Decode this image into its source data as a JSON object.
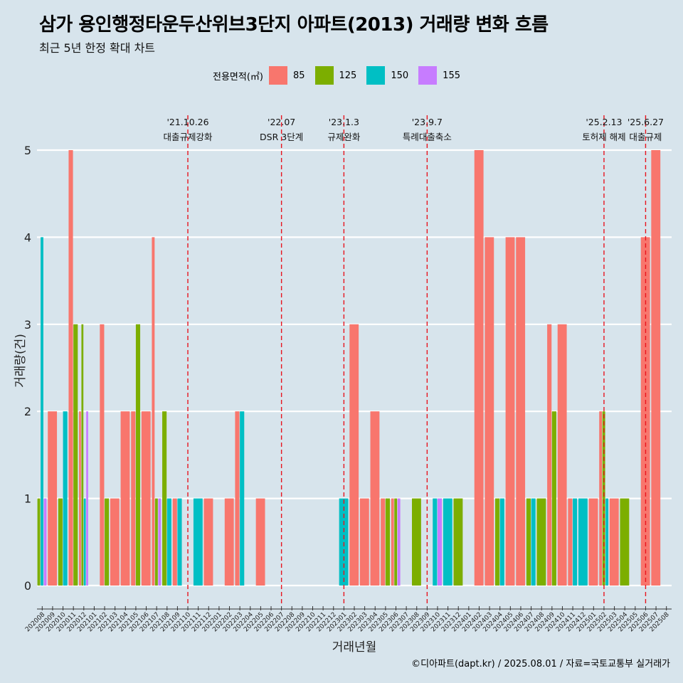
{
  "title": "삼가 용인행정타운두산위브3단지 아파트(2013) 거래량 변화 흐름",
  "subtitle": "최근 5년 한정 확대 차트",
  "caption": "©디아파트(dapt.kr) / 2025.08.01 / 자료=국토교통부 실거래가",
  "legend": {
    "title": "전용면적(㎡)",
    "items": [
      {
        "label": "85",
        "color": "#f8766d"
      },
      {
        "label": "125",
        "color": "#7cae00"
      },
      {
        "label": "150",
        "color": "#00bfc4"
      },
      {
        "label": "155",
        "color": "#c77cff"
      }
    ]
  },
  "chart_data": {
    "type": "bar",
    "xlabel": "거래년월",
    "ylabel": "거래량(건)",
    "ylim": [
      0,
      5
    ],
    "yticks": [
      0,
      1,
      2,
      3,
      4,
      5
    ],
    "grid": true,
    "categories": [
      "202008",
      "202009",
      "202010",
      "202011",
      "202012",
      "202101",
      "202102",
      "202103",
      "202104",
      "202105",
      "202106",
      "202107",
      "202108",
      "202109",
      "202110",
      "202111",
      "202112",
      "202201",
      "202202",
      "202203",
      "202204",
      "202205",
      "202206",
      "202207",
      "202208",
      "202209",
      "202210",
      "202211",
      "202212",
      "202301",
      "202302",
      "202303",
      "202304",
      "202305",
      "202306",
      "202307",
      "202308",
      "202309",
      "202310",
      "202311",
      "202312",
      "202401",
      "202402",
      "202403",
      "202404",
      "202405",
      "202406",
      "202407",
      "202408",
      "202409",
      "202410",
      "202411",
      "202412",
      "202501",
      "202502",
      "202503",
      "202504",
      "202505",
      "202506",
      "202507",
      "202508"
    ],
    "series": [
      {
        "name": "85",
        "color": "#f8766d",
        "values": [
          0,
          2,
          0,
          5,
          2,
          0,
          3,
          1,
          2,
          2,
          2,
          4,
          0,
          1,
          0,
          0,
          1,
          0,
          1,
          2,
          0,
          1,
          0,
          0,
          0,
          0,
          0,
          0,
          0,
          0,
          3,
          1,
          2,
          1,
          1,
          0,
          0,
          0,
          0,
          0,
          0,
          0,
          5,
          4,
          0,
          4,
          4,
          0,
          0,
          3,
          3,
          1,
          0,
          1,
          2,
          1,
          0,
          0,
          4,
          5,
          0
        ]
      },
      {
        "name": "125",
        "color": "#7cae00",
        "values": [
          1,
          0,
          1,
          3,
          3,
          0,
          1,
          0,
          0,
          3,
          0,
          1,
          2,
          0,
          0,
          0,
          0,
          0,
          0,
          0,
          0,
          0,
          0,
          0,
          0,
          0,
          0,
          0,
          0,
          0,
          0,
          0,
          0,
          1,
          1,
          0,
          1,
          0,
          0,
          0,
          1,
          0,
          0,
          0,
          1,
          0,
          0,
          1,
          1,
          2,
          0,
          0,
          0,
          0,
          2,
          0,
          1,
          0,
          0,
          0,
          0
        ]
      },
      {
        "name": "150",
        "color": "#00bfc4",
        "values": [
          4,
          0,
          2,
          0,
          1,
          0,
          0,
          0,
          0,
          0,
          0,
          0,
          1,
          1,
          0,
          1,
          0,
          0,
          0,
          2,
          0,
          0,
          0,
          0,
          0,
          0,
          0,
          0,
          0,
          1,
          0,
          0,
          0,
          0,
          0,
          0,
          0,
          0,
          1,
          1,
          0,
          0,
          0,
          0,
          1,
          0,
          0,
          1,
          0,
          0,
          0,
          1,
          1,
          0,
          1,
          0,
          0,
          0,
          0,
          0,
          0
        ]
      },
      {
        "name": "155",
        "color": "#c77cff",
        "values": [
          1,
          0,
          0,
          0,
          2,
          0,
          0,
          0,
          0,
          0,
          0,
          1,
          0,
          0,
          0,
          0,
          0,
          0,
          0,
          0,
          0,
          0,
          0,
          0,
          0,
          0,
          0,
          0,
          0,
          0,
          0,
          0,
          0,
          0,
          1,
          0,
          0,
          0,
          1,
          0,
          0,
          0,
          0,
          0,
          0,
          0,
          0,
          0,
          0,
          0,
          0,
          0,
          0,
          0,
          0,
          0,
          0,
          0,
          0,
          0,
          0
        ]
      }
    ],
    "annotations": [
      {
        "x": "202110",
        "date": "'21.10.26",
        "text": "대출규제강화"
      },
      {
        "x": "202207",
        "date": "'22.07",
        "text": "DSR 3단계"
      },
      {
        "x": "202301",
        "date": "'23.1.3",
        "text": "규제완화"
      },
      {
        "x": "202309",
        "date": "'23.9.7",
        "text": "특례대출축소"
      },
      {
        "x": "202502",
        "date": "'25.2.13",
        "text": "토허제 해제"
      },
      {
        "x": "202506",
        "date": "'25.6.27",
        "text": "대출규제"
      }
    ]
  }
}
